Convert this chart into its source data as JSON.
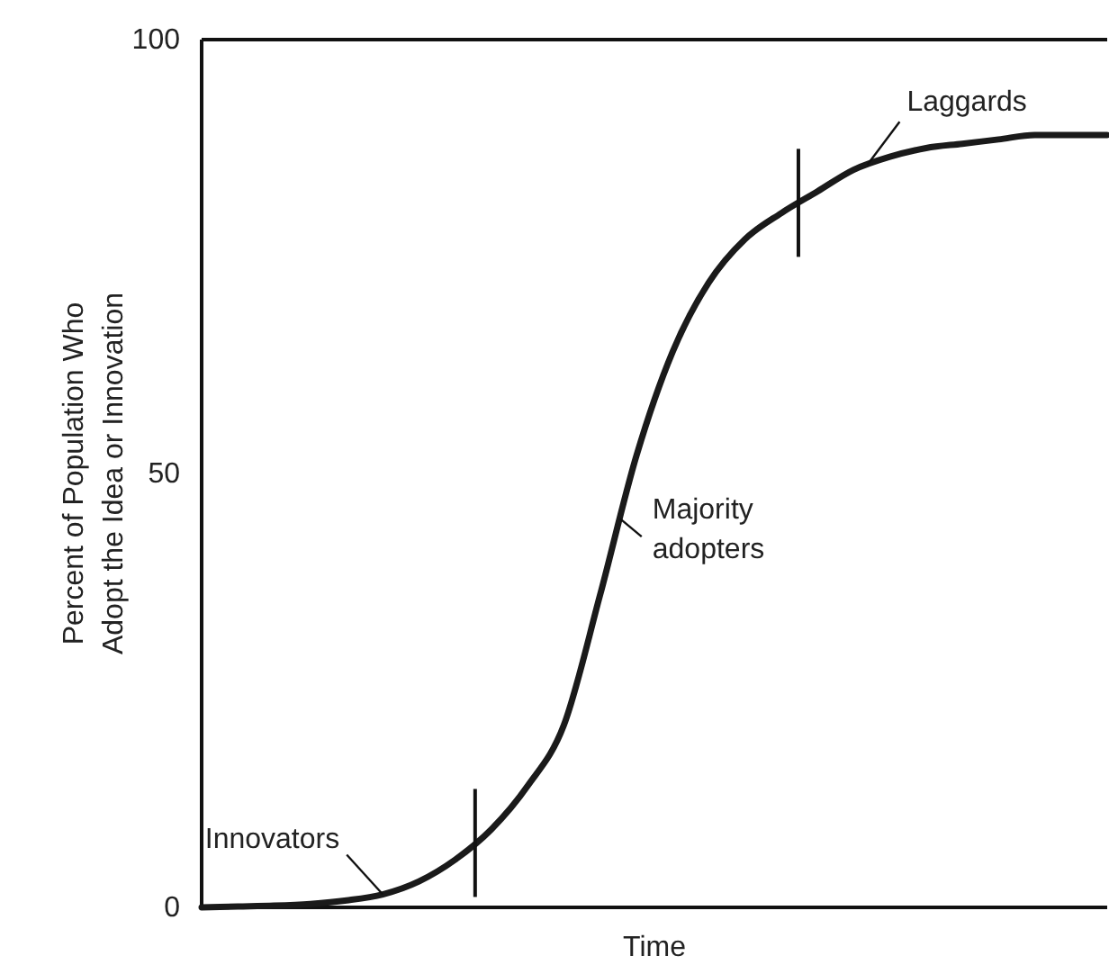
{
  "chart_data": {
    "type": "line",
    "xlabel": "Time",
    "ylabel": "Percent of Population Who\nAdopt the Idea or Innovation",
    "categories": [
      null,
      null,
      null,
      null,
      null,
      null,
      null,
      null,
      null,
      null,
      null,
      null,
      null,
      null,
      null,
      null,
      null,
      null,
      null,
      null,
      null,
      null,
      null,
      null,
      null,
      null
    ],
    "series": [
      {
        "color": "#1a1a1a",
        "values": [
          0,
          0.1,
          0.2,
          0.4,
          0.8,
          1.5,
          3,
          5.5,
          9,
          14,
          21,
          36,
          52,
          64,
          72,
          77,
          80,
          82.5,
          85,
          86.5,
          87.5,
          88,
          88.5,
          89,
          89,
          89
        ]
      }
    ],
    "ylim": [
      0,
      100
    ],
    "yticks": [
      0,
      50,
      100
    ],
    "tick_labels": "y",
    "grid": false,
    "marker": "none",
    "line_style": "solid",
    "annotations": [
      {
        "text": "Innovators",
        "y": 1.5
      },
      "Majority adopters",
      "Laggards"
    ]
  }
}
